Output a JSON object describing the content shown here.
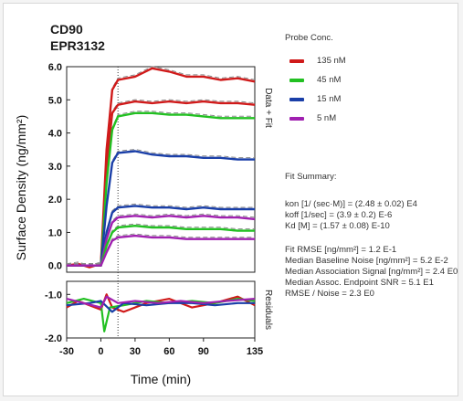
{
  "figure": {
    "title_line1": "CD90",
    "title_line2": "EPR3132"
  },
  "chart_data": [
    {
      "type": "line",
      "panel": "Data + Fit",
      "ylabel": "Surface Density (ng/mm²)",
      "xlim": [
        -30,
        135
      ],
      "ylim": [
        -0.2,
        6.0
      ],
      "yticks": [
        "0.0",
        "1.0",
        "2.0",
        "3.0",
        "4.0",
        "5.0",
        "6.0"
      ],
      "ytick_values": [
        0,
        1,
        2,
        3,
        4,
        5,
        6
      ],
      "grid": false,
      "series": [
        {
          "name": "135 nM",
          "color": "#d01a1a",
          "values": [
            [
              -30,
              0
            ],
            [
              -20,
              0.05
            ],
            [
              -10,
              -0.05
            ],
            [
              0,
              0.05
            ],
            [
              5,
              3.5
            ],
            [
              10,
              5.3
            ],
            [
              15,
              5.6
            ],
            [
              30,
              5.7
            ],
            [
              45,
              5.95
            ],
            [
              60,
              5.85
            ],
            [
              75,
              5.7
            ],
            [
              90,
              5.7
            ],
            [
              105,
              5.6
            ],
            [
              120,
              5.65
            ],
            [
              135,
              5.55
            ]
          ]
        },
        {
          "name": "135 nM",
          "color": "#d01a1a",
          "values": [
            [
              -30,
              0
            ],
            [
              0,
              0
            ],
            [
              5,
              3.0
            ],
            [
              10,
              4.6
            ],
            [
              15,
              4.85
            ],
            [
              30,
              4.95
            ],
            [
              45,
              4.9
            ],
            [
              60,
              4.95
            ],
            [
              75,
              4.9
            ],
            [
              90,
              4.95
            ],
            [
              105,
              4.9
            ],
            [
              120,
              4.9
            ],
            [
              135,
              4.85
            ]
          ]
        },
        {
          "name": "45 nM",
          "color": "#22c022",
          "values": [
            [
              -30,
              0
            ],
            [
              0,
              0
            ],
            [
              5,
              2.5
            ],
            [
              10,
              4.1
            ],
            [
              15,
              4.5
            ],
            [
              30,
              4.6
            ],
            [
              45,
              4.6
            ],
            [
              60,
              4.55
            ],
            [
              75,
              4.55
            ],
            [
              90,
              4.5
            ],
            [
              105,
              4.45
            ],
            [
              120,
              4.45
            ],
            [
              135,
              4.45
            ]
          ]
        },
        {
          "name": "15 nM",
          "color": "#1a3fa8",
          "values": [
            [
              -30,
              0
            ],
            [
              0,
              0
            ],
            [
              5,
              1.8
            ],
            [
              10,
              3.1
            ],
            [
              15,
              3.4
            ],
            [
              30,
              3.45
            ],
            [
              45,
              3.35
            ],
            [
              60,
              3.3
            ],
            [
              75,
              3.3
            ],
            [
              90,
              3.25
            ],
            [
              105,
              3.25
            ],
            [
              120,
              3.2
            ],
            [
              135,
              3.2
            ]
          ]
        },
        {
          "name": "15 nM",
          "color": "#1a3fa8",
          "values": [
            [
              -30,
              0
            ],
            [
              0,
              0
            ],
            [
              5,
              1.0
            ],
            [
              10,
              1.6
            ],
            [
              15,
              1.75
            ],
            [
              30,
              1.8
            ],
            [
              45,
              1.75
            ],
            [
              60,
              1.75
            ],
            [
              75,
              1.7
            ],
            [
              90,
              1.75
            ],
            [
              105,
              1.7
            ],
            [
              120,
              1.7
            ],
            [
              135,
              1.7
            ]
          ]
        },
        {
          "name": "5 nM",
          "color": "#a020b0",
          "values": [
            [
              -30,
              0
            ],
            [
              0,
              0
            ],
            [
              5,
              0.8
            ],
            [
              10,
              1.3
            ],
            [
              15,
              1.45
            ],
            [
              30,
              1.5
            ],
            [
              45,
              1.45
            ],
            [
              60,
              1.5
            ],
            [
              75,
              1.45
            ],
            [
              90,
              1.5
            ],
            [
              105,
              1.45
            ],
            [
              120,
              1.45
            ],
            [
              135,
              1.4
            ]
          ]
        },
        {
          "name": "45 nM",
          "color": "#22c022",
          "values": [
            [
              -30,
              0
            ],
            [
              0,
              0
            ],
            [
              5,
              0.6
            ],
            [
              10,
              1.0
            ],
            [
              15,
              1.15
            ],
            [
              30,
              1.2
            ],
            [
              45,
              1.15
            ],
            [
              60,
              1.15
            ],
            [
              75,
              1.1
            ],
            [
              90,
              1.1
            ],
            [
              105,
              1.1
            ],
            [
              120,
              1.05
            ],
            [
              135,
              1.05
            ]
          ]
        },
        {
          "name": "5 nM",
          "color": "#a020b0",
          "values": [
            [
              -30,
              0
            ],
            [
              0,
              0
            ],
            [
              5,
              0.4
            ],
            [
              10,
              0.75
            ],
            [
              15,
              0.85
            ],
            [
              30,
              0.9
            ],
            [
              45,
              0.85
            ],
            [
              60,
              0.85
            ],
            [
              75,
              0.8
            ],
            [
              90,
              0.8
            ],
            [
              105,
              0.8
            ],
            [
              120,
              0.8
            ],
            [
              135,
              0.8
            ]
          ]
        }
      ]
    },
    {
      "type": "line",
      "panel": "Residuals",
      "xlabel": "Time (min)",
      "xlim": [
        -30,
        135
      ],
      "ylim": [
        -2.0,
        -0.7
      ],
      "yticks": [
        "-1.0",
        "-2.0"
      ],
      "ytick_values": [
        -1.0,
        -2.0
      ],
      "xticks": [
        "-30",
        "0",
        "30",
        "60",
        "90",
        "135"
      ],
      "xtick_values": [
        -30,
        0,
        30,
        60,
        90,
        135
      ],
      "series": [
        {
          "name": "135 nM",
          "color": "#d01a1a",
          "values": [
            [
              -30,
              -1.3
            ],
            [
              -20,
              -1.15
            ],
            [
              -10,
              -1.25
            ],
            [
              0,
              -1.35
            ],
            [
              5,
              -1.0
            ],
            [
              10,
              -1.3
            ],
            [
              20,
              -1.4
            ],
            [
              40,
              -1.2
            ],
            [
              60,
              -1.1
            ],
            [
              80,
              -1.3
            ],
            [
              100,
              -1.2
            ],
            [
              120,
              -1.05
            ],
            [
              135,
              -1.25
            ]
          ]
        },
        {
          "name": "45 nM",
          "color": "#22c022",
          "values": [
            [
              -30,
              -1.2
            ],
            [
              -15,
              -1.1
            ],
            [
              0,
              -1.2
            ],
            [
              3,
              -1.85
            ],
            [
              8,
              -1.3
            ],
            [
              20,
              -1.25
            ],
            [
              40,
              -1.15
            ],
            [
              60,
              -1.2
            ],
            [
              80,
              -1.15
            ],
            [
              100,
              -1.2
            ],
            [
              120,
              -1.1
            ],
            [
              135,
              -1.15
            ]
          ]
        },
        {
          "name": "15 nM",
          "color": "#1a3fa8",
          "values": [
            [
              -30,
              -1.25
            ],
            [
              -10,
              -1.2
            ],
            [
              0,
              -1.15
            ],
            [
              10,
              -1.4
            ],
            [
              20,
              -1.2
            ],
            [
              40,
              -1.25
            ],
            [
              60,
              -1.2
            ],
            [
              80,
              -1.2
            ],
            [
              100,
              -1.25
            ],
            [
              120,
              -1.2
            ],
            [
              135,
              -1.2
            ]
          ]
        },
        {
          "name": "5 nM",
          "color": "#a020b0",
          "values": [
            [
              -30,
              -1.1
            ],
            [
              -15,
              -1.2
            ],
            [
              0,
              -1.3
            ],
            [
              5,
              -1.05
            ],
            [
              15,
              -1.2
            ],
            [
              30,
              -1.15
            ],
            [
              50,
              -1.2
            ],
            [
              70,
              -1.15
            ],
            [
              90,
              -1.2
            ],
            [
              110,
              -1.15
            ],
            [
              135,
              -1.1
            ]
          ]
        }
      ]
    }
  ],
  "legend": {
    "title": "Probe Conc.",
    "items": [
      {
        "label": "135 nM",
        "color": "#d01a1a"
      },
      {
        "label": "45 nM",
        "color": "#22c022"
      },
      {
        "label": "15 nM",
        "color": "#1a3fa8"
      },
      {
        "label": "5 nM",
        "color": "#a020b0"
      }
    ]
  },
  "fit_summary": {
    "title": "Fit Summary:",
    "lines": [
      "kon  [1/ (sec·M)]  =   (2.48 ± 0.02) E4",
      "koff  [1/sec]  =   (3.9 ± 0.2) E-6",
      "Kd  [M]  =   (1.57 ± 0.08) E-10"
    ],
    "stats": [
      "Fit RMSE [ng/mm²]  =   1.2 E-1",
      "Median Baseline Noise [ng/mm²]  =  5.2 E-2",
      "Median Association Signal [ng/mm²] = 2.4 E0",
      "Median Assoc. Endpoint SNR  =  5.1 E1",
      "RMSE / Noise  =  2.3 E0"
    ]
  }
}
